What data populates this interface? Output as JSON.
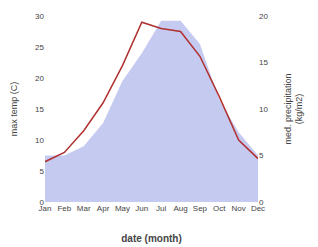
{
  "chart_data": {
    "type": "line",
    "categories": [
      "Jan",
      "Feb",
      "Mar",
      "Apr",
      "May",
      "Jun",
      "Jul",
      "Aug",
      "Sep",
      "Oct",
      "Nov",
      "Dec"
    ],
    "series": [
      {
        "type": "area",
        "color": "#c5caf0",
        "axis": "y2",
        "values": [
          5.0,
          5.0,
          6.0,
          8.5,
          13.0,
          16.0,
          19.5,
          19.5,
          17.0,
          11.0,
          7.5,
          5.0
        ]
      },
      {
        "type": "line",
        "color": "#b03030",
        "values": [
          6.5,
          8.0,
          11.5,
          16.0,
          22.0,
          29.0,
          28.0,
          27.5,
          23.5,
          17.0,
          10.0,
          7.0
        ]
      }
    ],
    "xlabel": "date (month)",
    "ylabel": "max temp (C)",
    "y2label": "med. precipitation\n(kg/m2)",
    "ylim": [
      0,
      30
    ],
    "yticks": [
      0,
      5,
      10,
      15,
      20,
      25,
      30
    ],
    "y2lim": [
      0,
      20
    ],
    "y2ticks": [
      0,
      5,
      10,
      15,
      20
    ],
    "grid": false
  }
}
